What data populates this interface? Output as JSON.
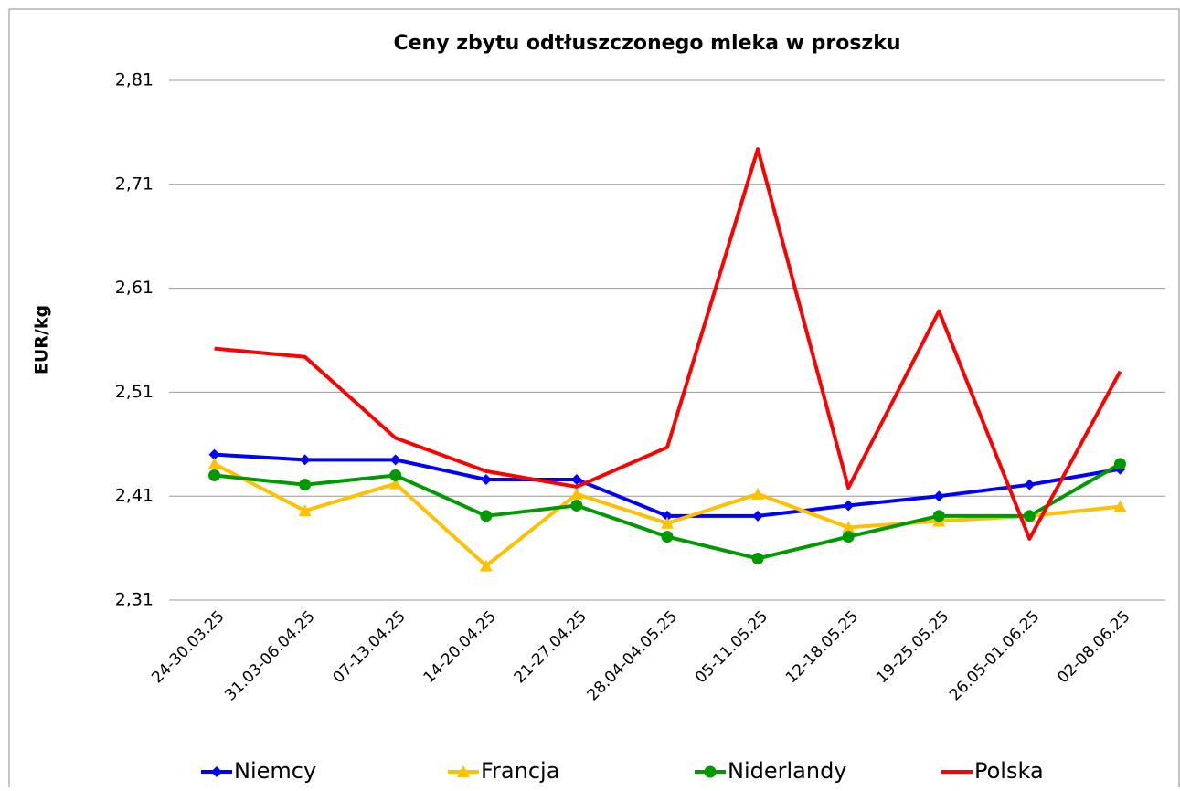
{
  "chart_data": {
    "type": "line",
    "title": "Ceny zbytu odtłuszczonego mleka w proszku",
    "y_label": "EUR/kg",
    "categories": [
      "24-30.03.25",
      "31.03-06.04.25",
      "07-13.04.25",
      "14-20.04.25",
      "21-27.04.25",
      "28.04-04.05.25",
      "05-11.05.25",
      "12-18.05.25",
      "19-25.05.25",
      "26.05-01.06.25",
      "02-08.06.25"
    ],
    "series": [
      {
        "name": "Niemcy",
        "color": "#0000ff",
        "marker": "diamond",
        "values": [
          2.45,
          2.445,
          2.445,
          2.426,
          2.426,
          2.391,
          2.391,
          2.401,
          2.41,
          2.421,
          2.436
        ]
      },
      {
        "name": "Francja",
        "color": "#ffc000",
        "marker": "triangle",
        "values": [
          2.441,
          2.396,
          2.422,
          2.343,
          2.412,
          2.384,
          2.412,
          2.38,
          2.386,
          2.391,
          2.4
        ]
      },
      {
        "name": "Niderlandy",
        "color": "#009900",
        "marker": "circle",
        "values": [
          2.43,
          2.421,
          2.43,
          2.391,
          2.401,
          2.371,
          2.35,
          2.371,
          2.391,
          2.391,
          2.441
        ]
      },
      {
        "name": "Polska",
        "color": "#ff0000",
        "marker": "none",
        "values": [
          2.552,
          2.544,
          2.466,
          2.434,
          2.419,
          2.457,
          2.744,
          2.418,
          2.588,
          2.369,
          2.53
        ]
      }
    ],
    "ylim": [
      2.31,
      2.81
    ],
    "yticks": [
      {
        "value": 2.31,
        "label": "2,31"
      },
      {
        "value": 2.41,
        "label": "2,41"
      },
      {
        "value": 2.51,
        "label": "2,51"
      },
      {
        "value": 2.61,
        "label": "2,61"
      },
      {
        "value": 2.71,
        "label": "2,71"
      },
      {
        "value": 2.81,
        "label": "2,81"
      }
    ],
    "grid": true,
    "legend": "bottom"
  }
}
